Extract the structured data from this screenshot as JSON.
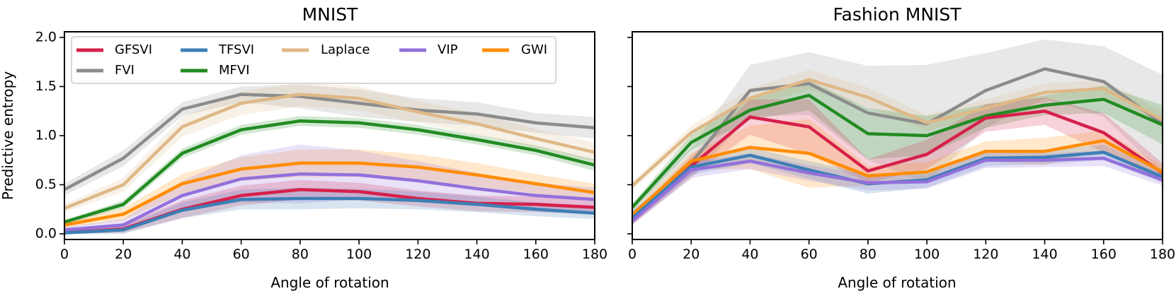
{
  "shared": {
    "x": [
      0,
      20,
      40,
      60,
      80,
      100,
      120,
      140,
      160,
      180
    ],
    "xlim": [
      0,
      180
    ],
    "ylim": [
      0,
      2.0
    ],
    "xticks": [
      0,
      20,
      40,
      60,
      80,
      100,
      120,
      140,
      160,
      180
    ],
    "yticks": [
      "0.0",
      "0.5",
      "1.0",
      "1.5",
      "2.0"
    ],
    "xlabel": "Angle of rotation",
    "ylabel": "Predictive entropy"
  },
  "legend": [
    {
      "name": "GFSVI",
      "color": "#d6204a"
    },
    {
      "name": "TFSVI",
      "color": "#3d7fb5"
    },
    {
      "name": "Laplace",
      "color": "#deb887"
    },
    {
      "name": "VIP",
      "color": "#9370db"
    },
    {
      "name": "GWI",
      "color": "#ff8c00"
    },
    {
      "name": "FVI",
      "color": "#8c8c8c"
    },
    {
      "name": "MFVI",
      "color": "#228b22"
    }
  ],
  "chart_data": [
    {
      "type": "line",
      "title": "MNIST",
      "xlabel": "Angle of rotation",
      "ylabel": "Predictive entropy",
      "x": [
        0,
        20,
        40,
        60,
        80,
        100,
        120,
        140,
        160,
        180
      ],
      "ylim": [
        0,
        2.0
      ],
      "series": [
        {
          "name": "FVI",
          "color": "#8c8c8c",
          "values": [
            0.45,
            0.77,
            1.27,
            1.42,
            1.4,
            1.33,
            1.26,
            1.22,
            1.13,
            1.08
          ],
          "spread": [
            0.06,
            0.08,
            0.07,
            0.08,
            0.12,
            0.14,
            0.12,
            0.12,
            0.1,
            0.11
          ]
        },
        {
          "name": "Laplace",
          "color": "#deb887",
          "values": [
            0.26,
            0.5,
            1.09,
            1.33,
            1.42,
            1.38,
            1.24,
            1.12,
            0.97,
            0.83
          ],
          "spread": [
            0.04,
            0.07,
            0.1,
            0.12,
            0.12,
            0.12,
            0.11,
            0.11,
            0.1,
            0.1
          ]
        },
        {
          "name": "MFVI",
          "color": "#228b22",
          "values": [
            0.12,
            0.3,
            0.82,
            1.06,
            1.15,
            1.13,
            1.06,
            0.96,
            0.85,
            0.7
          ],
          "spread": [
            0.02,
            0.04,
            0.05,
            0.05,
            0.05,
            0.05,
            0.05,
            0.05,
            0.05,
            0.06
          ]
        },
        {
          "name": "GWI",
          "color": "#ff8c00",
          "values": [
            0.09,
            0.2,
            0.51,
            0.66,
            0.72,
            0.72,
            0.68,
            0.6,
            0.51,
            0.42
          ],
          "spread": [
            0.03,
            0.06,
            0.1,
            0.12,
            0.14,
            0.14,
            0.13,
            0.12,
            0.1,
            0.09
          ]
        },
        {
          "name": "VIP",
          "color": "#9370db",
          "values": [
            0.04,
            0.09,
            0.39,
            0.56,
            0.61,
            0.6,
            0.54,
            0.46,
            0.39,
            0.35
          ],
          "spread": [
            0.03,
            0.06,
            0.15,
            0.24,
            0.3,
            0.25,
            0.2,
            0.16,
            0.13,
            0.12
          ]
        },
        {
          "name": "GFSVI",
          "color": "#d6204a",
          "values": [
            0.01,
            0.05,
            0.25,
            0.39,
            0.45,
            0.43,
            0.36,
            0.31,
            0.3,
            0.27
          ],
          "spread": [
            0.02,
            0.04,
            0.09,
            0.1,
            0.1,
            0.09,
            0.08,
            0.08,
            0.08,
            0.07
          ]
        },
        {
          "name": "TFSVI",
          "color": "#3d7fb5",
          "values": [
            0.01,
            0.04,
            0.24,
            0.35,
            0.36,
            0.36,
            0.34,
            0.3,
            0.25,
            0.21
          ],
          "spread": [
            0.02,
            0.04,
            0.08,
            0.1,
            0.11,
            0.1,
            0.09,
            0.08,
            0.07,
            0.06
          ]
        }
      ]
    },
    {
      "type": "line",
      "title": "Fashion MNIST",
      "xlabel": "Angle of rotation",
      "ylabel": "",
      "x": [
        0,
        20,
        40,
        60,
        80,
        100,
        120,
        140,
        160,
        180
      ],
      "ylim": [
        0,
        2.0
      ],
      "series": [
        {
          "name": "FVI",
          "color": "#8c8c8c",
          "values": [
            0.2,
            0.72,
            1.46,
            1.53,
            1.23,
            1.12,
            1.46,
            1.68,
            1.55,
            1.12
          ],
          "spread": [
            0.1,
            0.16,
            0.26,
            0.32,
            0.48,
            0.6,
            0.38,
            0.3,
            0.36,
            0.5
          ]
        },
        {
          "name": "Laplace",
          "color": "#deb887",
          "values": [
            0.49,
            1.03,
            1.38,
            1.57,
            1.39,
            1.13,
            1.28,
            1.44,
            1.48,
            1.16
          ],
          "spread": [
            0.04,
            0.07,
            0.1,
            0.1,
            0.1,
            0.08,
            0.09,
            0.09,
            0.09,
            0.08
          ]
        },
        {
          "name": "MFVI",
          "color": "#228b22",
          "values": [
            0.27,
            0.93,
            1.26,
            1.41,
            1.02,
            1.0,
            1.2,
            1.31,
            1.37,
            1.11
          ],
          "spread": [
            0.04,
            0.08,
            0.1,
            0.15,
            0.26,
            0.2,
            0.12,
            0.1,
            0.14,
            0.2
          ]
        },
        {
          "name": "GFSVI",
          "color": "#d6204a",
          "values": [
            0.14,
            0.69,
            1.19,
            1.09,
            0.64,
            0.81,
            1.18,
            1.25,
            1.03,
            0.62
          ],
          "spread": [
            0.05,
            0.1,
            0.18,
            0.28,
            0.12,
            0.15,
            0.14,
            0.14,
            0.2,
            0.1
          ]
        },
        {
          "name": "GWI",
          "color": "#ff8c00",
          "values": [
            0.19,
            0.74,
            0.88,
            0.82,
            0.59,
            0.63,
            0.84,
            0.84,
            0.95,
            0.63
          ],
          "spread": [
            0.04,
            0.08,
            0.22,
            0.35,
            0.1,
            0.1,
            0.1,
            0.14,
            0.1,
            0.06
          ]
        },
        {
          "name": "TFSVI",
          "color": "#3d7fb5",
          "values": [
            0.16,
            0.68,
            0.8,
            0.65,
            0.51,
            0.55,
            0.77,
            0.78,
            0.83,
            0.58
          ],
          "spread": [
            0.04,
            0.08,
            0.08,
            0.09,
            0.1,
            0.08,
            0.08,
            0.07,
            0.08,
            0.06
          ]
        },
        {
          "name": "VIP",
          "color": "#9370db",
          "values": [
            0.13,
            0.65,
            0.74,
            0.62,
            0.52,
            0.53,
            0.75,
            0.75,
            0.77,
            0.55
          ],
          "spread": [
            0.04,
            0.08,
            0.08,
            0.08,
            0.08,
            0.07,
            0.08,
            0.07,
            0.08,
            0.06
          ]
        }
      ]
    }
  ]
}
